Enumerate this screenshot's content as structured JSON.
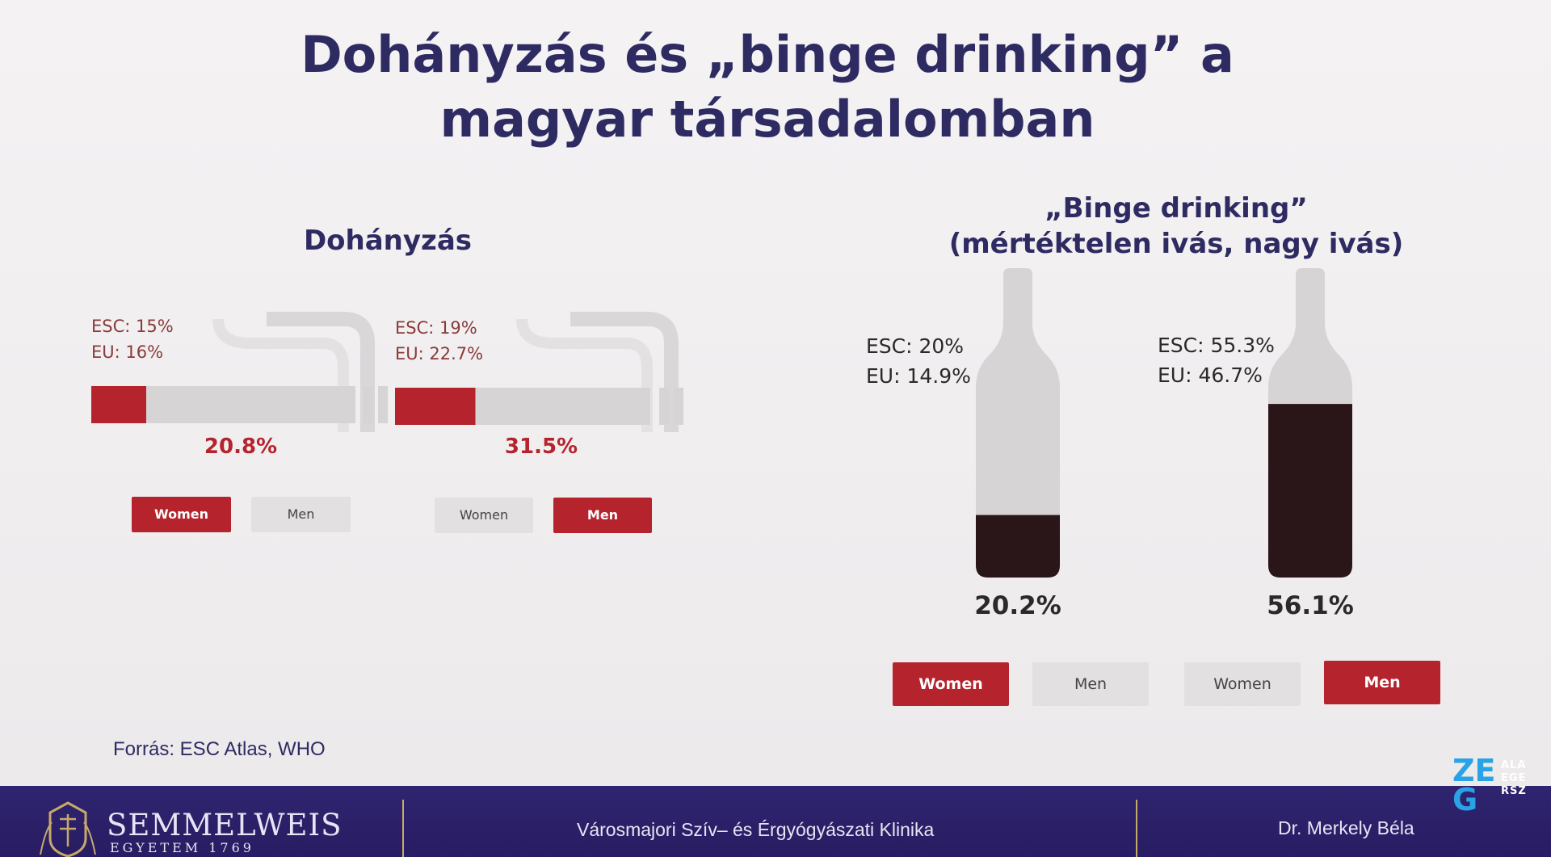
{
  "title": "Dohányzás és „binge drinking” a magyar társadalomban",
  "source": "Forrás: ESC Atlas, WHO",
  "footer": {
    "logo_main": "SEMMELWEIS",
    "logo_sub": "EGYETEM 1769",
    "clinic": "Városmajori Szív– és Érgyógyászati Klinika",
    "author": "Dr. Merkely Béla",
    "badge_letters_top": "ZEG",
    "badge_side": [
      "ALA",
      "EGE",
      "RSZ"
    ]
  },
  "colors": {
    "accent": "#b5232c",
    "wine": "#2a1518",
    "bg_gray": "#d8d6d7",
    "title": "#2e2b63"
  },
  "chart_data": [
    {
      "type": "bar",
      "title": "Dohányzás",
      "categories": [
        "Women",
        "Men"
      ],
      "values": [
        20.8,
        31.5
      ],
      "value_labels": [
        "20.8%",
        "31.5%"
      ],
      "ylim": [
        0,
        100
      ],
      "annotations": [
        {
          "category": "Women",
          "lines": [
            "ESC: 15%",
            "EU: 16%"
          ]
        },
        {
          "category": "Men",
          "lines": [
            "ESC: 19%",
            "EU: 22.7%"
          ]
        }
      ],
      "legend": [
        {
          "labels": [
            "Women",
            "Men"
          ],
          "active": "Women"
        },
        {
          "labels": [
            "Women",
            "Men"
          ],
          "active": "Men"
        }
      ]
    },
    {
      "type": "bar",
      "title": "„Binge drinking” (mértéktelen ivás, nagy ivás)",
      "title_lines": [
        "„Binge drinking”",
        "(mértéktelen ivás, nagy ivás)"
      ],
      "categories": [
        "Women",
        "Men"
      ],
      "values": [
        20.2,
        56.1
      ],
      "value_labels": [
        "20.2%",
        "56.1%"
      ],
      "ylim": [
        0,
        100
      ],
      "annotations": [
        {
          "category": "Women",
          "lines": [
            "ESC: 20%",
            "EU: 14.9%"
          ]
        },
        {
          "category": "Men",
          "lines": [
            "ESC: 55.3%",
            "EU: 46.7%"
          ]
        }
      ],
      "legend": [
        {
          "labels": [
            "Women",
            "Men"
          ],
          "active": "Women"
        },
        {
          "labels": [
            "Women",
            "Men"
          ],
          "active": "Men"
        }
      ]
    }
  ]
}
